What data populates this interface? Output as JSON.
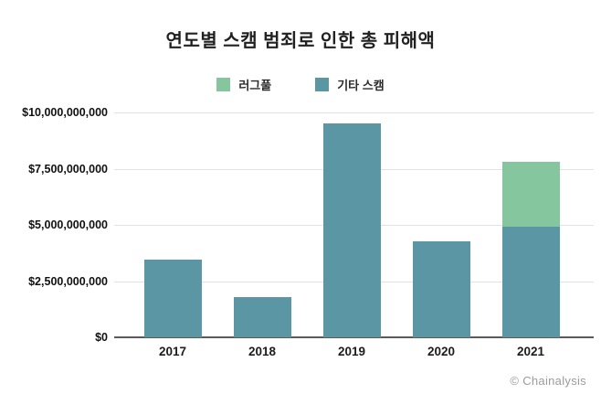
{
  "title": "연도별 스캠 범죄로 인한 총 피해액",
  "legend": {
    "items": [
      {
        "label": "러그풀",
        "color": "#85c69e"
      },
      {
        "label": "기타 스캠",
        "color": "#5b96a4"
      }
    ]
  },
  "footer": {
    "credit": "© Chainalysis"
  },
  "colors": {
    "rugpull_green": "#85c69e",
    "other_scam_teal": "#5b96a4",
    "gridline": "#e2e2e2",
    "axis": "#5a5a5a"
  },
  "chart_data": {
    "type": "bar",
    "stacked": true,
    "title": "연도별 스캠 범죄로 인한 총 피해액",
    "categories": [
      "2017",
      "2018",
      "2019",
      "2020",
      "2021"
    ],
    "series": [
      {
        "name": "기타 스캠",
        "color": "#5b96a4",
        "values": [
          3450000000,
          1800000000,
          9500000000,
          4250000000,
          4900000000
        ]
      },
      {
        "name": "러그풀",
        "color": "#85c69e",
        "values": [
          0,
          0,
          0,
          0,
          2900000000
        ]
      }
    ],
    "xlabel": "",
    "ylabel": "",
    "ylim": [
      0,
      10000000000
    ],
    "ytick_step": 2500000000,
    "ytick_labels": [
      "$0",
      "$2,500,000,000",
      "$5,000,000,000",
      "$7,500,000,000",
      "$10,000,000,000"
    ],
    "grid": true,
    "legend_position": "top-center",
    "annotation": "© Chainalysis"
  }
}
